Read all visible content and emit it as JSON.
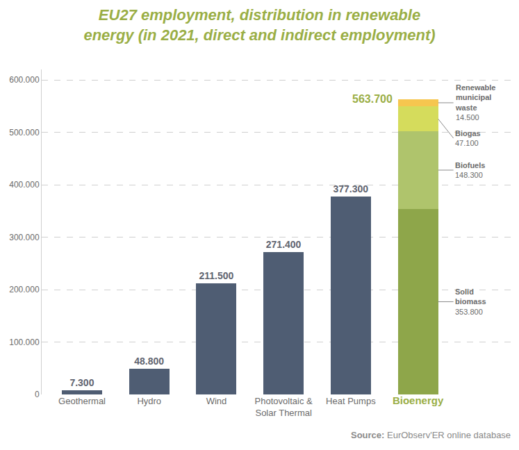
{
  "chart_data": {
    "type": "bar",
    "title": "EU27 employment, distribution in renewable energy (in 2021, direct and indirect employment)",
    "source": "Source: EurObserv'ER online database",
    "categories": [
      "Geothermal",
      "Hydro",
      "Wind",
      "Photovoltaic & Solar Thermal",
      "Heat Pumps",
      "Bioenergy"
    ],
    "stacked": true,
    "data_labels": true,
    "grid": true,
    "ylim": [
      0,
      620000
    ],
    "yticks": [
      0,
      {
        "value": 100000,
        "label": "100.000"
      },
      {
        "value": 200000,
        "label": "200.000"
      },
      {
        "value": 300000,
        "label": "300.000"
      },
      {
        "value": 400000,
        "label": "400.000"
      },
      {
        "value": 500000,
        "label": "500.000"
      },
      {
        "value": 600000,
        "label": "600.000"
      }
    ],
    "series": [
      {
        "color": "#4f5d73",
        "values": [
          7300,
          48800,
          211500,
          271400,
          377300,
          null
        ],
        "value_labels": [
          "7.300",
          "48.800",
          "211.500",
          "271.400",
          "377.300",
          null
        ]
      },
      {
        "name": "Solid biomass",
        "color": "#8ea64a",
        "values": [
          null,
          null,
          null,
          null,
          null,
          353800
        ],
        "value_labels": [
          null,
          null,
          null,
          null,
          null,
          "353.800"
        ]
      },
      {
        "name": "Biofuels",
        "color": "#afc46c",
        "values": [
          null,
          null,
          null,
          null,
          null,
          148300
        ],
        "value_labels": [
          null,
          null,
          null,
          null,
          null,
          "148.300"
        ]
      },
      {
        "name": "Biogas",
        "color": "#d5dc5c",
        "values": [
          null,
          null,
          null,
          null,
          null,
          47100
        ],
        "value_labels": [
          null,
          null,
          null,
          null,
          null,
          "47.100"
        ]
      },
      {
        "name": "Renewable municipal waste",
        "color": "#f6c64f",
        "values": [
          null,
          null,
          null,
          null,
          null,
          14500
        ],
        "value_labels": [
          null,
          null,
          null,
          null,
          null,
          "14.500"
        ]
      }
    ],
    "annotations": [
      {
        "text": "563.700",
        "value": 563700,
        "category": "Bioenergy"
      }
    ]
  }
}
